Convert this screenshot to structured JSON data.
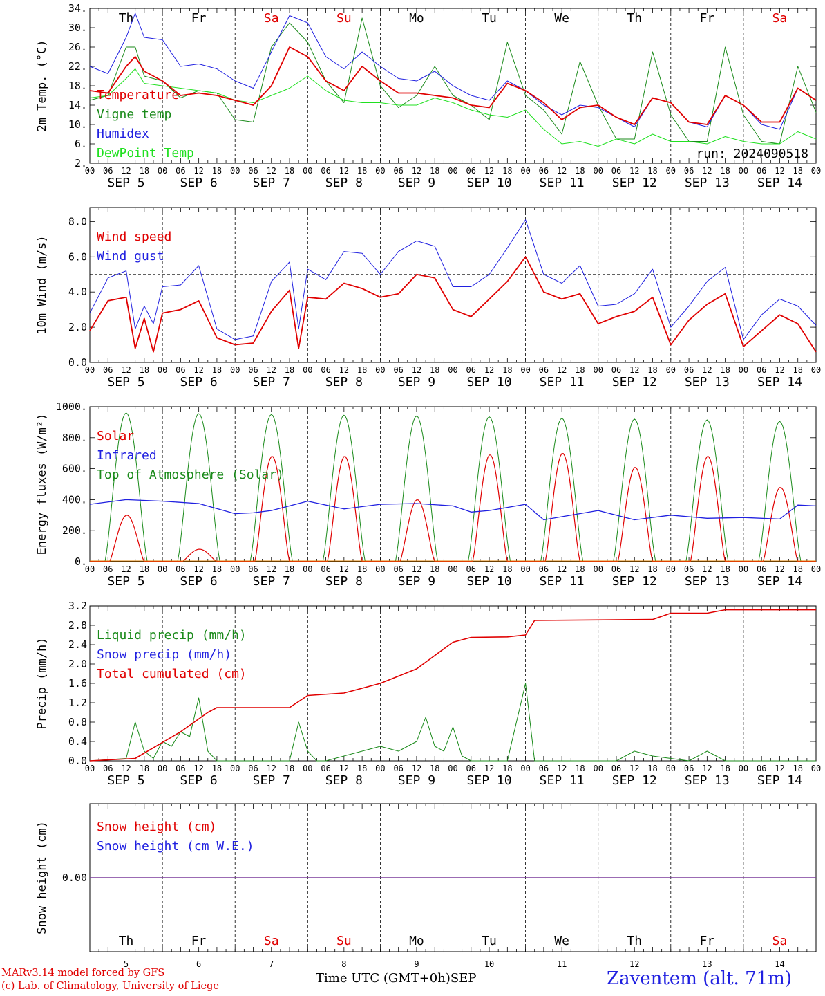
{
  "colors": {
    "temperature": "#e00000",
    "vigne": "#1a8a1a",
    "humidex": "#2020e0",
    "dewpoint": "#20e020",
    "weekday": "#000000",
    "weekend": "#e00000",
    "snow_line": "#7a3a9a"
  },
  "days": [
    {
      "dow": "Th",
      "date": "SEP  5",
      "num": "5",
      "weekend": false
    },
    {
      "dow": "Fr",
      "date": "SEP  6",
      "num": "6",
      "weekend": false
    },
    {
      "dow": "Sa",
      "date": "SEP  7",
      "num": "7",
      "weekend": true
    },
    {
      "dow": "Su",
      "date": "SEP  8",
      "num": "8",
      "weekend": true
    },
    {
      "dow": "Mo",
      "date": "SEP  9",
      "num": "9",
      "weekend": false
    },
    {
      "dow": "Tu",
      "date": "SEP 10",
      "num": "10",
      "weekend": false
    },
    {
      "dow": "We",
      "date": "SEP 11",
      "num": "11",
      "weekend": false
    },
    {
      "dow": "Th",
      "date": "SEP 12",
      "num": "12",
      "weekend": false
    },
    {
      "dow": "Fr",
      "date": "SEP 13",
      "num": "13",
      "weekend": false
    },
    {
      "dow": "Sa",
      "date": "SEP 14",
      "num": "14",
      "weekend": true
    }
  ],
  "hour_labels": [
    "00",
    "06",
    "12",
    "18"
  ],
  "footer": {
    "model": "MARv3.14 model forced by GFS",
    "lab": "(c) Lab. of Climatology, University of Liege",
    "xtitle": "Time UTC (GMT+0h)",
    "month": "SEP",
    "station": "Zaventem (alt. 71m)"
  },
  "chart_data": [
    {
      "type": "line",
      "ylabel": "2m Temp. (°C)",
      "ylim": [
        2,
        34
      ],
      "yticks": [
        "34.",
        "30.",
        "26.",
        "22.",
        "18.",
        "14.",
        "10.",
        "6.",
        "2."
      ],
      "ytick_values": [
        34,
        30,
        26,
        22,
        18,
        14,
        10,
        6,
        2
      ],
      "annotation": "run: 2024090518",
      "x_hours": [
        0,
        6,
        12,
        15,
        18,
        24,
        30,
        36,
        42,
        48,
        54,
        60,
        66,
        72,
        78,
        84,
        90,
        96,
        102,
        108,
        114,
        120,
        126,
        132,
        138,
        144,
        150,
        156,
        162,
        168,
        174,
        180,
        186,
        192,
        198,
        204,
        210,
        216,
        222,
        228,
        234,
        240
      ],
      "series": [
        {
          "name": "Temperature",
          "color_key": "temperature",
          "width": 1.8,
          "values": [
            17,
            16.5,
            22,
            24,
            21,
            19,
            16,
            16.5,
            16,
            15,
            14,
            18,
            26,
            24,
            19,
            17,
            22,
            19,
            16.5,
            16.5,
            16,
            15.5,
            14,
            13.5,
            18.5,
            17,
            14.5,
            11,
            13.5,
            14,
            11.5,
            10,
            15.5,
            14.5,
            10.5,
            10,
            16,
            14,
            10.5,
            10.5,
            17.5,
            15
          ]
        },
        {
          "name": "Vigne temp",
          "color_key": "vigne",
          "width": 1,
          "values": [
            15,
            16,
            26,
            26,
            20,
            19,
            15.5,
            17,
            16.5,
            11,
            10.5,
            26,
            31,
            27,
            19,
            14.5,
            32,
            18,
            13.5,
            16,
            22,
            16,
            14,
            11,
            27,
            16,
            13,
            8,
            23,
            14,
            7,
            7,
            25,
            12,
            6.5,
            6.5,
            26,
            12,
            6.5,
            6,
            22,
            12.5
          ]
        },
        {
          "name": "Humidex",
          "color_key": "humidex",
          "width": 1,
          "values": [
            22,
            20.5,
            28,
            33,
            28,
            27.5,
            22,
            22.5,
            21.5,
            19,
            17.5,
            25,
            32.5,
            31,
            24,
            21.5,
            25,
            22,
            19.5,
            19,
            21,
            18,
            16,
            15,
            19,
            17,
            14,
            12,
            14,
            13.5,
            11.5,
            9.5,
            15.5,
            14.5,
            10.5,
            9.5,
            16,
            14,
            10,
            9,
            17.5,
            15
          ]
        },
        {
          "name": "DewPoint Temp",
          "color_key": "dewpoint",
          "width": 1,
          "values": [
            15.5,
            16,
            19.5,
            21.5,
            18.5,
            18,
            17.5,
            17,
            16.5,
            15,
            14.5,
            16,
            17.5,
            20,
            17,
            15,
            14.5,
            14.5,
            14,
            14,
            15.5,
            14.5,
            13,
            12,
            11.5,
            13,
            9,
            6,
            6.5,
            5.5,
            7,
            6,
            8,
            6.5,
            6.5,
            6,
            7.5,
            6.5,
            6,
            6,
            8.5,
            7
          ]
        }
      ]
    },
    {
      "type": "line",
      "ylabel": "10m Wind (m/s)",
      "ylim": [
        0,
        8.8
      ],
      "yticks": [
        "8.0",
        "6.0",
        "4.0",
        "2.0",
        "0.0"
      ],
      "ytick_values": [
        8,
        6,
        4,
        2,
        0
      ],
      "reference_line": 5,
      "x_hours": [
        0,
        6,
        12,
        15,
        18,
        21,
        24,
        30,
        36,
        42,
        48,
        54,
        60,
        66,
        69,
        72,
        78,
        84,
        90,
        96,
        102,
        108,
        114,
        120,
        126,
        132,
        138,
        144,
        150,
        156,
        162,
        168,
        174,
        180,
        186,
        192,
        198,
        204,
        210,
        216,
        222,
        228,
        234,
        240
      ],
      "series": [
        {
          "name": "Wind speed",
          "color_key": "temperature",
          "width": 1.8,
          "values": [
            1.8,
            3.5,
            3.7,
            0.8,
            2.5,
            0.6,
            2.8,
            3.0,
            3.5,
            1.4,
            1.0,
            1.1,
            2.9,
            4.1,
            0.8,
            3.7,
            3.6,
            4.5,
            4.2,
            3.7,
            3.9,
            5.0,
            4.8,
            3.0,
            2.6,
            3.6,
            4.6,
            6.0,
            4.0,
            3.6,
            3.9,
            2.2,
            2.6,
            2.9,
            3.7,
            1.0,
            2.4,
            3.3,
            3.9,
            0.9,
            1.8,
            2.7,
            2.2,
            0.6
          ]
        },
        {
          "name": "Wind gust",
          "color_key": "humidex",
          "width": 1,
          "values": [
            2.8,
            4.8,
            5.2,
            1.9,
            3.2,
            2.2,
            4.3,
            4.4,
            5.5,
            1.9,
            1.3,
            1.5,
            4.6,
            5.7,
            1.9,
            5.3,
            4.7,
            6.3,
            6.2,
            5.0,
            6.3,
            6.9,
            6.6,
            4.3,
            4.3,
            5.0,
            6.5,
            8.1,
            5.0,
            4.5,
            5.5,
            3.2,
            3.3,
            3.9,
            5.3,
            2.0,
            3.2,
            4.6,
            5.4,
            1.3,
            2.7,
            3.6,
            3.2,
            2.1
          ]
        }
      ]
    },
    {
      "type": "area",
      "ylabel": "Energy fluxes (W/m²)",
      "ylim": [
        0,
        1000
      ],
      "yticks": [
        "1000.",
        "800.",
        "600.",
        "400.",
        "200.",
        "0."
      ],
      "ytick_values": [
        1000,
        800,
        600,
        400,
        200,
        0
      ],
      "solar_peaks": [
        300,
        80,
        680,
        680,
        400,
        690,
        700,
        610,
        680,
        480
      ],
      "toa_peaks": [
        960,
        955,
        950,
        945,
        940,
        935,
        925,
        920,
        915,
        905
      ],
      "infrared_x_hours": [
        0,
        12,
        24,
        36,
        48,
        54,
        60,
        72,
        84,
        96,
        108,
        120,
        126,
        132,
        144,
        150,
        156,
        168,
        180,
        192,
        204,
        216,
        228,
        234,
        240
      ],
      "infrared_values": [
        370,
        400,
        390,
        375,
        310,
        315,
        330,
        390,
        340,
        370,
        375,
        360,
        320,
        330,
        370,
        270,
        290,
        330,
        270,
        300,
        280,
        285,
        275,
        365,
        360
      ],
      "series": [
        {
          "name": "Solar",
          "color_key": "temperature"
        },
        {
          "name": "Infrared",
          "color_key": "humidex"
        },
        {
          "name": "Top of Atmosphere (Solar)",
          "color_key": "vigne"
        }
      ]
    },
    {
      "type": "line",
      "ylabel": "Precip (mm/h)",
      "ylim": [
        0,
        3.2
      ],
      "yticks": [
        "3.2",
        "2.8",
        "2.4",
        "2.0",
        "1.6",
        "1.2",
        "0.8",
        "0.4",
        "0.0"
      ],
      "ytick_values": [
        3.2,
        2.8,
        2.4,
        2.0,
        1.6,
        1.2,
        0.8,
        0.4,
        0.0
      ],
      "liquid_x_hours": [
        0,
        12,
        15,
        18,
        21,
        24,
        27,
        30,
        33,
        36,
        39,
        42,
        45,
        48,
        66,
        69,
        72,
        75,
        78,
        90,
        96,
        102,
        108,
        111,
        114,
        117,
        120,
        123,
        126,
        132,
        138,
        144,
        147,
        150,
        174,
        180,
        186,
        198,
        204,
        210,
        240
      ],
      "liquid_values": [
        0,
        0.05,
        0.8,
        0.2,
        0.05,
        0.4,
        0.3,
        0.6,
        0.5,
        1.3,
        0.2,
        0,
        0,
        0,
        0,
        0.8,
        0.2,
        0,
        0,
        0.2,
        0.3,
        0.2,
        0.4,
        0.9,
        0.3,
        0.2,
        0.7,
        0.1,
        0,
        0,
        0,
        1.6,
        0,
        0,
        0,
        0.2,
        0.1,
        0,
        0.2,
        0,
        0
      ],
      "cumul_x_hours": [
        0,
        15,
        30,
        39,
        42,
        66,
        72,
        84,
        96,
        108,
        120,
        126,
        138,
        144,
        147,
        186,
        192,
        204,
        210,
        240
      ],
      "cumul_values": [
        0,
        0.05,
        0.6,
        1.0,
        1.1,
        1.1,
        1.35,
        1.4,
        1.6,
        1.9,
        2.45,
        2.55,
        2.56,
        2.6,
        2.9,
        2.92,
        3.05,
        3.05,
        3.12,
        3.12
      ],
      "series": [
        {
          "name": "Liquid precip (mm/h)",
          "color_key": "vigne"
        },
        {
          "name": "Snow precip (mm/h)",
          "color_key": "humidex"
        },
        {
          "name": "Total cumulated (cm)",
          "color_key": "temperature"
        }
      ]
    },
    {
      "type": "line",
      "ylabel": "Snow height (cm)",
      "ylim": [
        -1,
        1
      ],
      "yticks": [
        "0.00"
      ],
      "ytick_values": [
        0
      ],
      "values": [
        0
      ],
      "series": [
        {
          "name": "Snow height (cm)",
          "color_key": "temperature"
        },
        {
          "name": "Snow height (cm W.E.)",
          "color_key": "humidex"
        }
      ]
    }
  ]
}
